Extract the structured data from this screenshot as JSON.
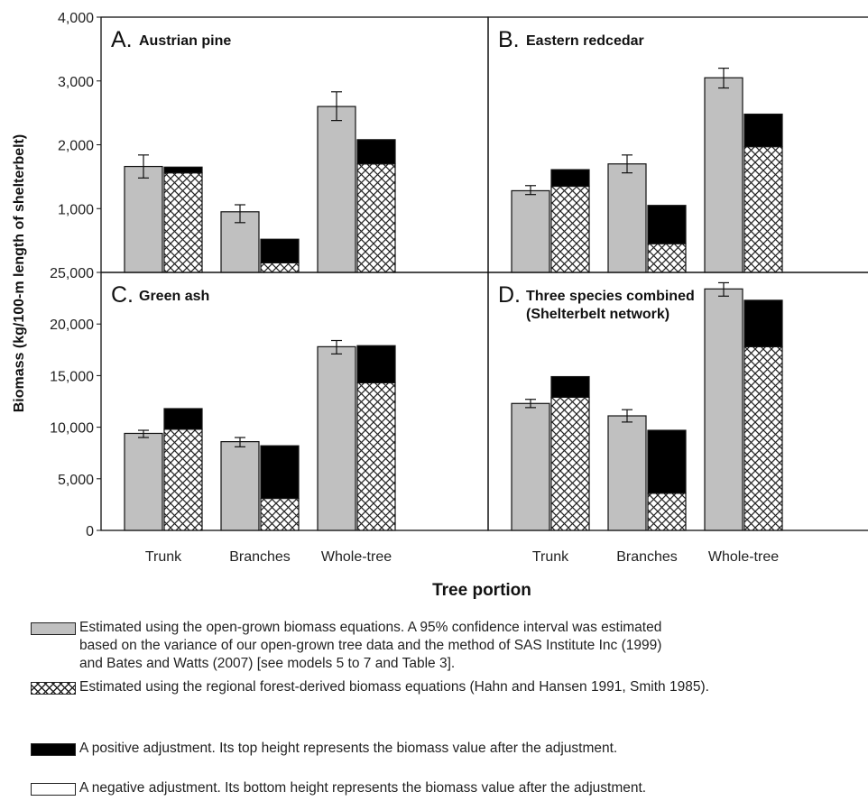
{
  "chart_data": {
    "type": "bar",
    "layout": "2x2 panels",
    "xlabel": "Tree portion",
    "ylabel": "Biomass (kg/100-m length of shelterbelt)",
    "categories": [
      "Trunk",
      "Branches",
      "Whole-tree"
    ],
    "panels": [
      {
        "letter": "A.",
        "title_lines": [
          "Austrian pine"
        ],
        "ylim": [
          0,
          4000
        ],
        "yticks": [
          "1,000",
          "2,000",
          "3,000",
          "4,000"
        ],
        "ytick_values": [
          1000,
          2000,
          3000,
          4000
        ],
        "open_grown": [
          1660,
          950,
          2600
        ],
        "open_grown_ci_low": [
          1480,
          780,
          2380
        ],
        "open_grown_ci_high": [
          1840,
          1060,
          2830
        ],
        "regional": [
          1560,
          150,
          1700
        ],
        "adjusted": [
          1650,
          520,
          2080
        ]
      },
      {
        "letter": "B.",
        "title_lines": [
          "Eastern redcedar"
        ],
        "ylim": [
          0,
          4000
        ],
        "yticks": [],
        "ytick_values": [
          1000,
          2000,
          3000,
          4000
        ],
        "open_grown": [
          1280,
          1700,
          3050
        ],
        "open_grown_ci_low": [
          1220,
          1560,
          2890
        ],
        "open_grown_ci_high": [
          1360,
          1840,
          3200
        ],
        "regional": [
          1350,
          450,
          1970
        ],
        "adjusted": [
          1610,
          1050,
          2480
        ]
      },
      {
        "letter": "C.",
        "title_lines": [
          "Green ash"
        ],
        "ylim": [
          0,
          25000
        ],
        "yticks": [
          "0",
          "5,000",
          "10,000",
          "15,000",
          "20,000",
          "25,000"
        ],
        "ytick_values": [
          0,
          5000,
          10000,
          15000,
          20000,
          25000
        ],
        "open_grown": [
          9400,
          8600,
          17800
        ],
        "open_grown_ci_low": [
          9000,
          8100,
          17100
        ],
        "open_grown_ci_high": [
          9700,
          9000,
          18400
        ],
        "regional": [
          9800,
          3100,
          14300
        ],
        "adjusted": [
          11800,
          8200,
          17900
        ]
      },
      {
        "letter": "D.",
        "title_lines": [
          "Three species combined",
          "(Shelterbelt network)"
        ],
        "ylim": [
          0,
          25000
        ],
        "yticks": [],
        "ytick_values": [
          0,
          5000,
          10000,
          15000,
          20000,
          25000
        ],
        "open_grown": [
          12300,
          11100,
          23400
        ],
        "open_grown_ci_low": [
          11900,
          10500,
          22700
        ],
        "open_grown_ci_high": [
          12700,
          11700,
          24000
        ],
        "regional": [
          12900,
          3600,
          17800
        ],
        "adjusted": [
          14900,
          9700,
          22300
        ]
      }
    ],
    "colors": {
      "open_grown": "#c0c0c0",
      "regional_hatch": "#222222",
      "positive": "#000000",
      "negative": "#ffffff"
    },
    "legend": [
      {
        "kind": "open_grown",
        "text": "Estimated using the open-grown biomass equations. A 95% confidence interval was estimated\nbased on the variance of our open-grown tree data and the method of SAS Institute Inc (1999)\nand Bates and Watts (2007) [see models 5 to 7 and Table 3]."
      },
      {
        "kind": "regional",
        "text": "Estimated using the regional forest-derived biomass equations (Hahn and Hansen 1991, Smith 1985)."
      },
      {
        "kind": "positive",
        "text": "A positive adjustment. Its top height represents the biomass value after the adjustment."
      },
      {
        "kind": "negative",
        "text": "A negative adjustment. Its bottom height represents the biomass value after the adjustment."
      }
    ]
  }
}
